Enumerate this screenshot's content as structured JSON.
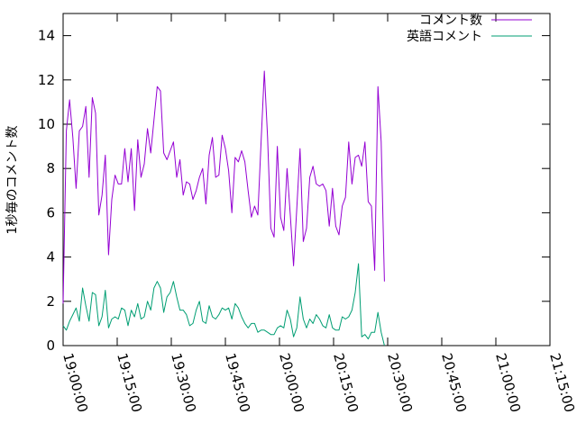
{
  "chart_data": {
    "type": "line",
    "title": "",
    "xlabel": "",
    "ylabel": "1秒毎のコメント数",
    "ylim": [
      0,
      15
    ],
    "y_ticks": [
      "0",
      "2",
      "4",
      "6",
      "8",
      "10",
      "12",
      "14"
    ],
    "x_ticks": [
      "19:00:00",
      "19:15:00",
      "19:30:00",
      "19:45:00",
      "20:00:00",
      "20:15:00",
      "20:30:00",
      "20:45:00",
      "21:00:00",
      "21:15:00"
    ],
    "x_range_minutes": [
      0,
      135
    ],
    "grid": false,
    "legend_position": "top-right",
    "series": [
      {
        "name": "コメント数",
        "color": "#9400d3",
        "points": [
          [
            0.0,
            1.9
          ],
          [
            0.9,
            9.7
          ],
          [
            1.8,
            11.1
          ],
          [
            2.7,
            9.4
          ],
          [
            3.6,
            7.1
          ],
          [
            4.5,
            9.7
          ],
          [
            5.4,
            9.9
          ],
          [
            6.3,
            10.8
          ],
          [
            7.2,
            7.6
          ],
          [
            8.1,
            11.2
          ],
          [
            9.0,
            10.5
          ],
          [
            9.9,
            5.9
          ],
          [
            10.8,
            6.8
          ],
          [
            11.7,
            8.6
          ],
          [
            12.6,
            4.1
          ],
          [
            13.5,
            6.6
          ],
          [
            14.4,
            7.7
          ],
          [
            15.3,
            7.3
          ],
          [
            16.2,
            7.3
          ],
          [
            17.1,
            8.9
          ],
          [
            18.0,
            7.4
          ],
          [
            18.9,
            8.9
          ],
          [
            19.8,
            6.1
          ],
          [
            20.7,
            9.3
          ],
          [
            21.6,
            7.6
          ],
          [
            22.5,
            8.2
          ],
          [
            23.4,
            9.8
          ],
          [
            24.3,
            8.7
          ],
          [
            25.2,
            10.2
          ],
          [
            26.1,
            11.7
          ],
          [
            27.0,
            11.5
          ],
          [
            27.9,
            8.7
          ],
          [
            28.8,
            8.4
          ],
          [
            29.7,
            8.8
          ],
          [
            30.6,
            9.2
          ],
          [
            31.5,
            7.6
          ],
          [
            32.4,
            8.4
          ],
          [
            33.3,
            6.8
          ],
          [
            34.2,
            7.4
          ],
          [
            35.1,
            7.3
          ],
          [
            36.0,
            6.6
          ],
          [
            36.9,
            7.0
          ],
          [
            37.8,
            7.6
          ],
          [
            38.7,
            8.0
          ],
          [
            39.6,
            6.4
          ],
          [
            40.5,
            8.6
          ],
          [
            41.4,
            9.4
          ],
          [
            42.3,
            7.6
          ],
          [
            43.2,
            7.7
          ],
          [
            44.1,
            9.5
          ],
          [
            45.0,
            8.9
          ],
          [
            45.9,
            7.9
          ],
          [
            46.8,
            6.0
          ],
          [
            47.7,
            8.5
          ],
          [
            48.6,
            8.3
          ],
          [
            49.5,
            8.8
          ],
          [
            50.4,
            8.3
          ],
          [
            51.3,
            7.0
          ],
          [
            52.2,
            5.8
          ],
          [
            53.1,
            6.3
          ],
          [
            54.0,
            5.9
          ],
          [
            54.9,
            9.2
          ],
          [
            55.8,
            12.4
          ],
          [
            56.7,
            9.4
          ],
          [
            57.6,
            5.3
          ],
          [
            58.5,
            4.9
          ],
          [
            59.4,
            9.0
          ],
          [
            60.3,
            5.8
          ],
          [
            61.2,
            5.2
          ],
          [
            62.1,
            8.0
          ],
          [
            63.0,
            5.9
          ],
          [
            63.9,
            3.6
          ],
          [
            64.8,
            6.2
          ],
          [
            65.7,
            8.9
          ],
          [
            66.6,
            4.7
          ],
          [
            67.5,
            5.3
          ],
          [
            68.4,
            7.6
          ],
          [
            69.3,
            8.1
          ],
          [
            70.2,
            7.3
          ],
          [
            71.1,
            7.2
          ],
          [
            72.0,
            7.3
          ],
          [
            72.9,
            7.0
          ],
          [
            73.8,
            5.4
          ],
          [
            74.7,
            7.1
          ],
          [
            75.6,
            5.4
          ],
          [
            76.5,
            5.0
          ],
          [
            77.4,
            6.3
          ],
          [
            78.3,
            6.7
          ],
          [
            79.2,
            9.2
          ],
          [
            80.1,
            7.3
          ],
          [
            81.0,
            8.5
          ],
          [
            81.9,
            8.6
          ],
          [
            82.8,
            8.1
          ],
          [
            83.7,
            9.2
          ],
          [
            84.6,
            6.5
          ],
          [
            85.5,
            6.3
          ],
          [
            86.4,
            3.4
          ],
          [
            87.3,
            11.7
          ],
          [
            88.2,
            9.2
          ],
          [
            89.1,
            2.9
          ]
        ]
      },
      {
        "name": "英語コメント",
        "color": "#009e73",
        "points": [
          [
            0.0,
            0.9
          ],
          [
            0.9,
            0.7
          ],
          [
            1.8,
            1.1
          ],
          [
            2.7,
            1.4
          ],
          [
            3.6,
            1.7
          ],
          [
            4.5,
            1.1
          ],
          [
            5.4,
            2.6
          ],
          [
            6.3,
            1.8
          ],
          [
            7.2,
            1.1
          ],
          [
            8.1,
            2.4
          ],
          [
            9.0,
            2.3
          ],
          [
            9.9,
            0.9
          ],
          [
            10.8,
            1.3
          ],
          [
            11.7,
            2.5
          ],
          [
            12.6,
            0.8
          ],
          [
            13.5,
            1.2
          ],
          [
            14.4,
            1.3
          ],
          [
            15.3,
            1.2
          ],
          [
            16.2,
            1.7
          ],
          [
            17.1,
            1.6
          ],
          [
            18.0,
            0.9
          ],
          [
            18.9,
            1.6
          ],
          [
            19.8,
            1.3
          ],
          [
            20.7,
            1.9
          ],
          [
            21.6,
            1.2
          ],
          [
            22.5,
            1.3
          ],
          [
            23.4,
            2.0
          ],
          [
            24.3,
            1.6
          ],
          [
            25.2,
            2.6
          ],
          [
            26.1,
            2.9
          ],
          [
            27.0,
            2.6
          ],
          [
            27.9,
            1.5
          ],
          [
            28.8,
            2.2
          ],
          [
            29.7,
            2.4
          ],
          [
            30.6,
            2.9
          ],
          [
            31.5,
            2.2
          ],
          [
            32.4,
            1.6
          ],
          [
            33.3,
            1.6
          ],
          [
            34.2,
            1.4
          ],
          [
            35.1,
            0.9
          ],
          [
            36.0,
            1.0
          ],
          [
            36.9,
            1.6
          ],
          [
            37.8,
            2.0
          ],
          [
            38.7,
            1.1
          ],
          [
            39.6,
            1.0
          ],
          [
            40.5,
            1.8
          ],
          [
            41.4,
            1.3
          ],
          [
            42.3,
            1.2
          ],
          [
            43.2,
            1.4
          ],
          [
            44.1,
            1.7
          ],
          [
            45.0,
            1.6
          ],
          [
            45.9,
            1.7
          ],
          [
            46.8,
            1.2
          ],
          [
            47.7,
            1.9
          ],
          [
            48.6,
            1.7
          ],
          [
            49.5,
            1.3
          ],
          [
            50.4,
            1.0
          ],
          [
            51.3,
            0.8
          ],
          [
            52.2,
            1.0
          ],
          [
            53.1,
            1.0
          ],
          [
            54.0,
            0.6
          ],
          [
            54.9,
            0.7
          ],
          [
            55.8,
            0.7
          ],
          [
            56.7,
            0.6
          ],
          [
            57.6,
            0.5
          ],
          [
            58.5,
            0.5
          ],
          [
            59.4,
            0.8
          ],
          [
            60.3,
            0.9
          ],
          [
            61.2,
            0.8
          ],
          [
            62.1,
            1.6
          ],
          [
            63.0,
            1.2
          ],
          [
            63.9,
            0.4
          ],
          [
            64.8,
            0.8
          ],
          [
            65.7,
            2.2
          ],
          [
            66.6,
            1.2
          ],
          [
            67.5,
            0.8
          ],
          [
            68.4,
            1.2
          ],
          [
            69.3,
            1.0
          ],
          [
            70.2,
            1.4
          ],
          [
            71.1,
            1.2
          ],
          [
            72.0,
            0.9
          ],
          [
            72.9,
            0.8
          ],
          [
            73.8,
            1.4
          ],
          [
            74.7,
            0.8
          ],
          [
            75.6,
            0.7
          ],
          [
            76.5,
            0.7
          ],
          [
            77.4,
            1.3
          ],
          [
            78.3,
            1.2
          ],
          [
            79.2,
            1.3
          ],
          [
            80.1,
            1.6
          ],
          [
            81.0,
            2.4
          ],
          [
            81.9,
            3.7
          ],
          [
            82.8,
            0.4
          ],
          [
            83.7,
            0.5
          ],
          [
            84.6,
            0.3
          ],
          [
            85.5,
            0.6
          ],
          [
            86.4,
            0.6
          ],
          [
            87.3,
            1.5
          ],
          [
            88.2,
            0.6
          ],
          [
            89.1,
            0.0
          ]
        ]
      }
    ]
  }
}
